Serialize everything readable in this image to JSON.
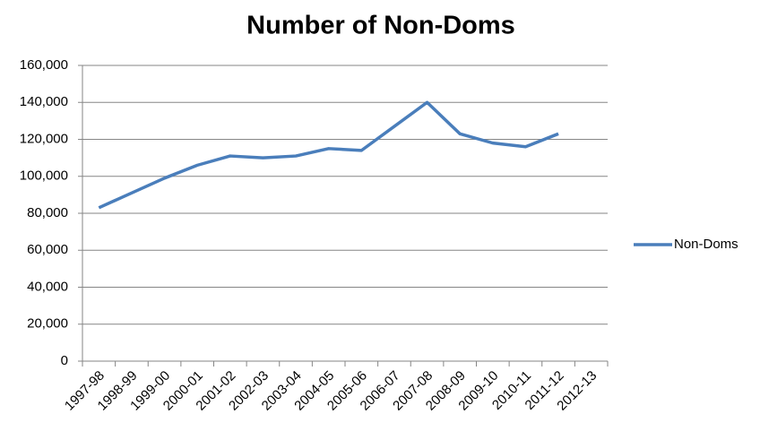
{
  "chart_data": {
    "type": "line",
    "title": "Number of Non-Doms",
    "categories": [
      "1997-98",
      "1998-99",
      "1999-00",
      "2000-01",
      "2001-02",
      "2002-03",
      "2003-04",
      "2004-05",
      "2005-06",
      "2006-07",
      "2007-08",
      "2008-09",
      "2009-10",
      "2010-11",
      "2011-12",
      "2012-13"
    ],
    "series": [
      {
        "name": "Non-Doms",
        "color": "#4a7ebb",
        "values": [
          83000,
          91000,
          99000,
          106000,
          111000,
          110000,
          111000,
          115000,
          114000,
          127000,
          140000,
          123000,
          118000,
          116000,
          123000,
          null
        ]
      }
    ],
    "ylim": [
      0,
      160000
    ],
    "yticks": [
      0,
      {
        "value": 20000,
        "label": "20,000"
      },
      {
        "value": 40000,
        "label": "40,000"
      },
      {
        "value": 60000,
        "label": "60,000"
      },
      {
        "value": 80000,
        "label": "80,000"
      },
      {
        "value": 100000,
        "label": "100,000"
      },
      {
        "value": 120000,
        "label": "120,000"
      },
      {
        "value": 140000,
        "label": "140,000"
      },
      {
        "value": 160000,
        "label": "160,000"
      }
    ],
    "grid": true,
    "legend": "right"
  }
}
